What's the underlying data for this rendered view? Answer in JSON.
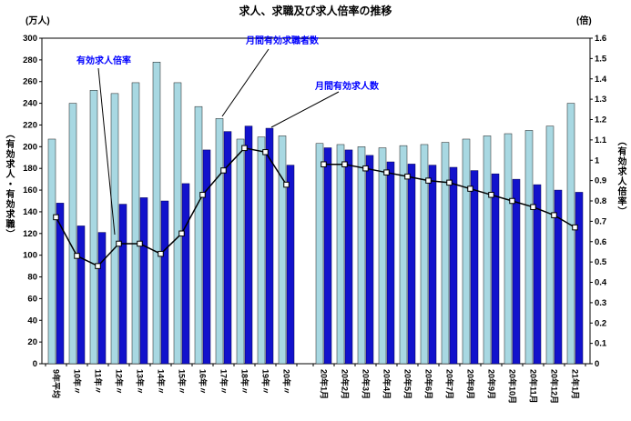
{
  "title": "求人、求職及び求人倍率の推移",
  "left_axis": {
    "unit": "(万人)",
    "title": "（有効求人・有効求職）",
    "min": 0,
    "max": 300,
    "step": 20,
    "ticks": [
      0,
      20,
      40,
      60,
      80,
      100,
      120,
      140,
      160,
      180,
      200,
      220,
      240,
      260,
      280,
      300
    ]
  },
  "right_axis": {
    "unit": "(倍)",
    "title": "（有効求人倍率）",
    "min": 0,
    "max": 1.6,
    "step": 0.1,
    "ticks": [
      "0",
      "0.1",
      "0.2",
      "0.3",
      "0.4",
      "0.5",
      "0.6",
      "0.7",
      "0.8",
      "0.9",
      "1",
      "1.1",
      "1.2",
      "1.3",
      "1.4",
      "1.5",
      "1.6"
    ]
  },
  "annotations": [
    {
      "label": "有効求人倍率"
    },
    {
      "label": "月間有効求職者数"
    },
    {
      "label": "月間有効求人数"
    }
  ],
  "chart_data": {
    "type": "bar",
    "subtype": "grouped bars with overlaid line (dual axis)",
    "gap_after_index": 11,
    "grid": false,
    "categories": [
      "9年平均",
      "10年〃",
      "11年〃",
      "12年〃",
      "13年〃",
      "14年〃",
      "15年〃",
      "16年〃",
      "17年〃",
      "18年〃",
      "19年〃",
      "20年〃",
      "20年1月",
      "20年2月",
      "20年3月",
      "20年4月",
      "20年5月",
      "20年6月",
      "20年7月",
      "20年8月",
      "20年9月",
      "20年10月",
      "20年11月",
      "20年12月",
      "21年1月"
    ],
    "series": [
      {
        "name": "月間有効求職者数",
        "type": "bar",
        "axis": "left",
        "color": "#a8d8e2",
        "values": [
          207,
          240,
          252,
          249,
          259,
          278,
          259,
          237,
          226,
          207,
          209,
          210,
          203,
          202,
          200,
          199,
          201,
          202,
          204,
          207,
          210,
          212,
          215,
          219,
          240
        ]
      },
      {
        "name": "月間有効求人数",
        "type": "bar",
        "axis": "left",
        "color": "#1212cc",
        "values": [
          148,
          127,
          121,
          147,
          153,
          150,
          166,
          197,
          214,
          219,
          217,
          183,
          199,
          197,
          192,
          186,
          184,
          183,
          181,
          178,
          175,
          170,
          165,
          160,
          158
        ]
      },
      {
        "name": "有効求人倍率",
        "type": "line",
        "axis": "right",
        "color": "#000000",
        "marker": "square-white",
        "values": [
          0.72,
          0.53,
          0.48,
          0.59,
          0.59,
          0.54,
          0.64,
          0.83,
          0.95,
          1.06,
          1.04,
          0.88,
          0.98,
          0.98,
          0.96,
          0.94,
          0.92,
          0.9,
          0.89,
          0.86,
          0.83,
          0.8,
          0.77,
          0.73,
          0.67
        ]
      }
    ]
  }
}
